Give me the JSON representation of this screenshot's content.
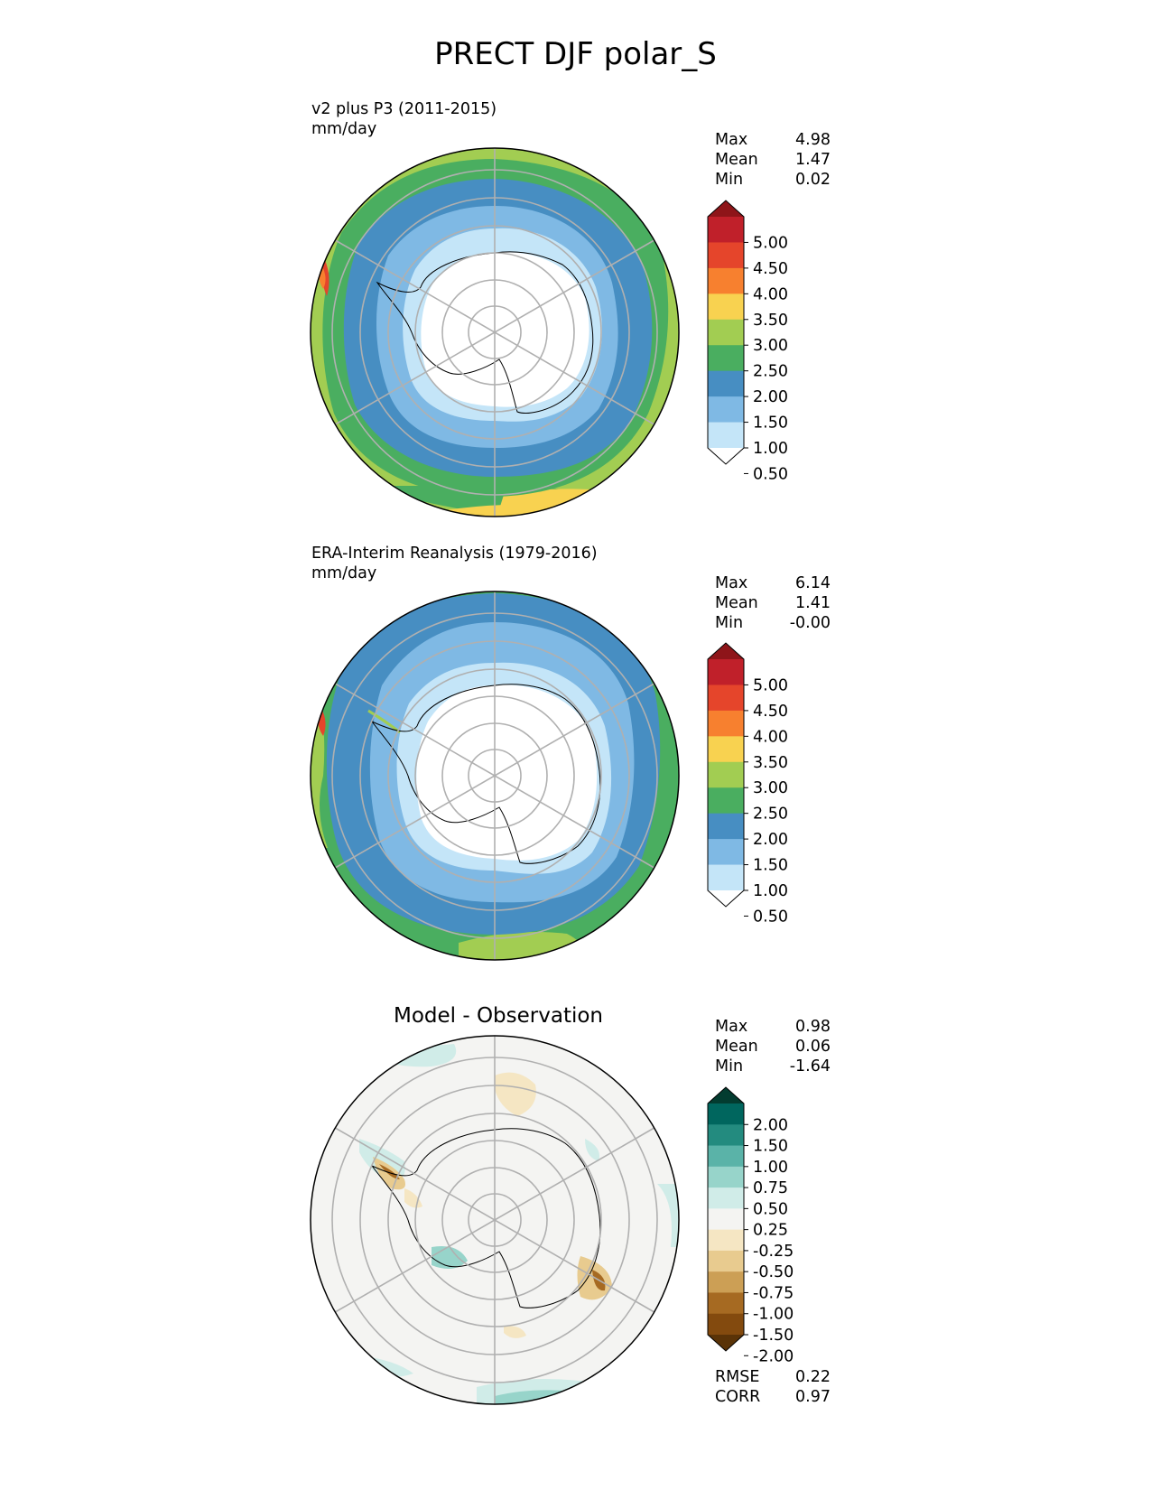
{
  "title": "PRECT DJF polar_S",
  "panels": [
    {
      "label_line1": "v2 plus P3 (2011-2015)",
      "label_line2": "mm/day",
      "stats": {
        "max_label": "Max",
        "max": "4.98",
        "mean_label": "Mean",
        "mean": "1.47",
        "min_label": "Min",
        "min": "0.02"
      },
      "colorbar": {
        "ticks": [
          "5.00",
          "4.50",
          "4.00",
          "3.50",
          "3.00",
          "2.50",
          "2.00",
          "1.50",
          "1.00",
          "0.50"
        ],
        "colors": [
          "#8e1519",
          "#c0202a",
          "#e5452b",
          "#f7802f",
          "#f8d250",
          "#a2cd52",
          "#4aae60",
          "#478ec2",
          "#7fb9e4",
          "#c4e5f8",
          "#ffffff"
        ]
      }
    },
    {
      "label_line1": "ERA-Interim Reanalysis (1979-2016)",
      "label_line2": "mm/day",
      "stats": {
        "max_label": "Max",
        "max": "6.14",
        "mean_label": "Mean",
        "mean": "1.41",
        "min_label": "Min",
        "min": "-0.00"
      },
      "colorbar": {
        "ticks": [
          "5.00",
          "4.50",
          "4.00",
          "3.50",
          "3.00",
          "2.50",
          "2.00",
          "1.50",
          "1.00",
          "0.50"
        ],
        "colors": [
          "#8e1519",
          "#c0202a",
          "#e5452b",
          "#f7802f",
          "#f8d250",
          "#a2cd52",
          "#4aae60",
          "#478ec2",
          "#7fb9e4",
          "#c4e5f8",
          "#ffffff"
        ]
      }
    },
    {
      "title": "Model - Observation",
      "stats": {
        "max_label": "Max",
        "max": "0.98",
        "mean_label": "Mean",
        "mean": "0.06",
        "min_label": "Min",
        "min": "-1.64"
      },
      "metrics": {
        "rmse_label": "RMSE",
        "rmse": "0.22",
        "corr_label": "CORR",
        "corr": "0.97"
      },
      "colorbar": {
        "ticks": [
          "2.00",
          "1.50",
          "1.00",
          "0.75",
          "0.50",
          "0.25",
          "-0.25",
          "-0.50",
          "-0.75",
          "-1.00",
          "-1.50",
          "-2.00"
        ],
        "colors": [
          "#033c30",
          "#00665e",
          "#238b7f",
          "#5ab3a8",
          "#97d4ca",
          "#d0ece8",
          "#f4f4f2",
          "#f5e6c3",
          "#e8cb8f",
          "#cc9f55",
          "#a66a22",
          "#834a0e",
          "#5a3307"
        ]
      }
    }
  ],
  "chart_data": [
    {
      "type": "heatmap",
      "projection": "south-polar stereographic",
      "title": "v2 plus P3 (2011-2015)",
      "units": "mm/day",
      "levels": [
        0.5,
        1.0,
        1.5,
        2.0,
        2.5,
        3.0,
        3.5,
        4.0,
        4.5,
        5.0
      ],
      "extend": "both",
      "max": 4.98,
      "mean": 1.47,
      "min": 0.02,
      "zones": [
        {
          "level": 0.25,
          "color": "#ffffff"
        },
        {
          "level": 0.75,
          "color": "#c4e5f8"
        },
        {
          "level": 1.25,
          "color": "#7fb9e4"
        },
        {
          "level": 1.75,
          "color": "#478ec2"
        },
        {
          "level": 2.25,
          "color": "#4aae60"
        },
        {
          "level": 2.75,
          "color": "#a2cd52"
        },
        {
          "level": 3.25,
          "color": "#f8d250"
        }
      ]
    },
    {
      "type": "heatmap",
      "projection": "south-polar stereographic",
      "title": "ERA-Interim Reanalysis (1979-2016)",
      "units": "mm/day",
      "levels": [
        0.5,
        1.0,
        1.5,
        2.0,
        2.5,
        3.0,
        3.5,
        4.0,
        4.5,
        5.0
      ],
      "extend": "both",
      "max": 6.14,
      "mean": 1.41,
      "min": -0.0,
      "zones": [
        {
          "level": 0.25,
          "color": "#ffffff"
        },
        {
          "level": 0.75,
          "color": "#c4e5f8"
        },
        {
          "level": 1.25,
          "color": "#7fb9e4"
        },
        {
          "level": 1.75,
          "color": "#478ec2"
        },
        {
          "level": 2.25,
          "color": "#4aae60"
        },
        {
          "level": 2.75,
          "color": "#a2cd52"
        }
      ]
    },
    {
      "type": "heatmap",
      "projection": "south-polar stereographic",
      "title": "Model - Observation",
      "levels": [
        -2.0,
        -1.5,
        -1.0,
        -0.75,
        -0.5,
        -0.25,
        0.25,
        0.5,
        0.75,
        1.0,
        1.5,
        2.0
      ],
      "extend": "both",
      "max": 0.98,
      "mean": 0.06,
      "min": -1.64,
      "rmse": 0.22,
      "corr": 0.97,
      "zones": [
        {
          "level": 0.0,
          "color": "#f4f4f2"
        },
        {
          "level": 0.375,
          "color": "#d0ece8"
        },
        {
          "level": 0.625,
          "color": "#97d4ca"
        },
        {
          "level": -0.375,
          "color": "#f5e6c3"
        },
        {
          "level": -0.625,
          "color": "#e8cb8f"
        },
        {
          "level": -0.875,
          "color": "#cc9f55"
        },
        {
          "level": -1.25,
          "color": "#a66a22"
        }
      ]
    }
  ]
}
